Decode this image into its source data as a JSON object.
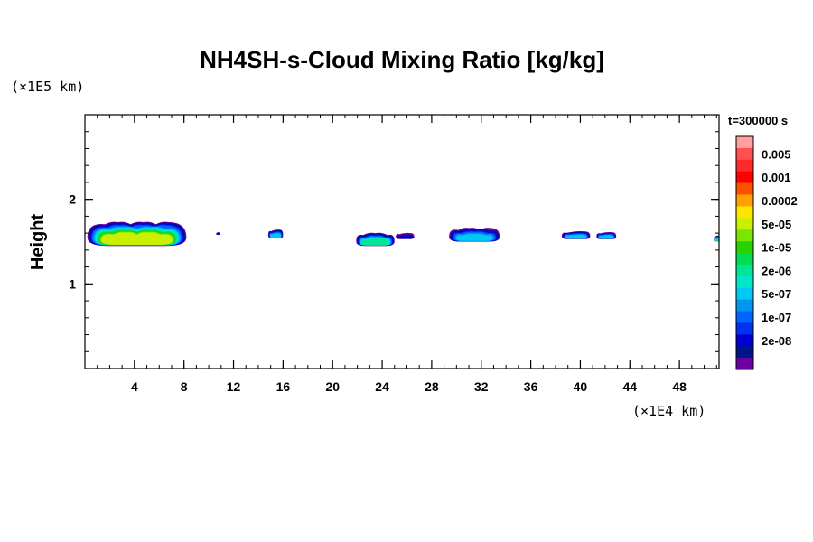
{
  "chart_data": {
    "type": "contour",
    "title": "NH4SH-s-Cloud Mixing Ratio [kg/kg]",
    "ylabel": "Height",
    "y_scale_note": "(×1E5 km)",
    "x_scale_note": "(×1E4 km)",
    "time_label": "t=300000 s",
    "xlim": [
      0,
      51.2
    ],
    "ylim": [
      0,
      3
    ],
    "x_ticks": [
      4,
      8,
      12,
      16,
      20,
      24,
      28,
      32,
      36,
      40,
      44,
      48
    ],
    "x_tick_labels": [
      "4",
      "8",
      "12",
      "16",
      "20",
      "24",
      "28",
      "32",
      "36",
      "40",
      "44",
      "48"
    ],
    "x_minor_step": 1,
    "y_ticks": [
      1,
      2
    ],
    "y_tick_labels": [
      "1",
      "2"
    ],
    "y_minor_step": 0.2,
    "colorbar": {
      "levels": [
        {
          "color": "#ffa0a0"
        },
        {
          "color": "#ff5050",
          "label": "0.005"
        },
        {
          "color": "#ff2a2a"
        },
        {
          "color": "#ff0000",
          "label": "0.001"
        },
        {
          "color": "#ff5000"
        },
        {
          "color": "#ffa000",
          "label": "0.0002"
        },
        {
          "color": "#ffe600"
        },
        {
          "color": "#c8f000",
          "label": "5e-05"
        },
        {
          "color": "#78e600"
        },
        {
          "color": "#28d200",
          "label": "1e-05"
        },
        {
          "color": "#00dc50"
        },
        {
          "color": "#00e696",
          "label": "2e-06"
        },
        {
          "color": "#00e6c8"
        },
        {
          "color": "#00c8f0",
          "label": "5e-07"
        },
        {
          "color": "#0096f0"
        },
        {
          "color": "#0064ff",
          "label": "1e-07"
        },
        {
          "color": "#0032f0"
        },
        {
          "color": "#0000d2",
          "label": "2e-08"
        },
        {
          "color": "#00148c"
        },
        {
          "color": "#6e00a0"
        }
      ]
    },
    "cloud_regions": [
      {
        "x": [
          0.2,
          8.2
        ],
        "y_base": 1.45,
        "y_top": 1.73,
        "peak_level": "5e-05"
      },
      {
        "x": [
          10.6,
          10.9
        ],
        "y_base": 1.58,
        "y_top": 1.61,
        "peak_level": "2e-08"
      },
      {
        "x": [
          14.8,
          16.0
        ],
        "y_base": 1.54,
        "y_top": 1.64,
        "peak_level": "5e-07"
      },
      {
        "x": [
          21.9,
          25.0
        ],
        "y_base": 1.45,
        "y_top": 1.6,
        "peak_level": "2e-06"
      },
      {
        "x": [
          25.1,
          26.6
        ],
        "y_base": 1.53,
        "y_top": 1.6,
        "peak_level": "2e-08"
      },
      {
        "x": [
          29.4,
          33.5
        ],
        "y_base": 1.5,
        "y_top": 1.66,
        "peak_level": "5e-07"
      },
      {
        "x": [
          38.5,
          40.8
        ],
        "y_base": 1.53,
        "y_top": 1.62,
        "peak_level": "5e-07"
      },
      {
        "x": [
          41.3,
          42.9
        ],
        "y_base": 1.53,
        "y_top": 1.61,
        "peak_level": "5e-07"
      },
      {
        "x": [
          50.8,
          51.2
        ],
        "y_base": 1.5,
        "y_top": 1.57,
        "peak_level": "2e-06"
      }
    ]
  }
}
